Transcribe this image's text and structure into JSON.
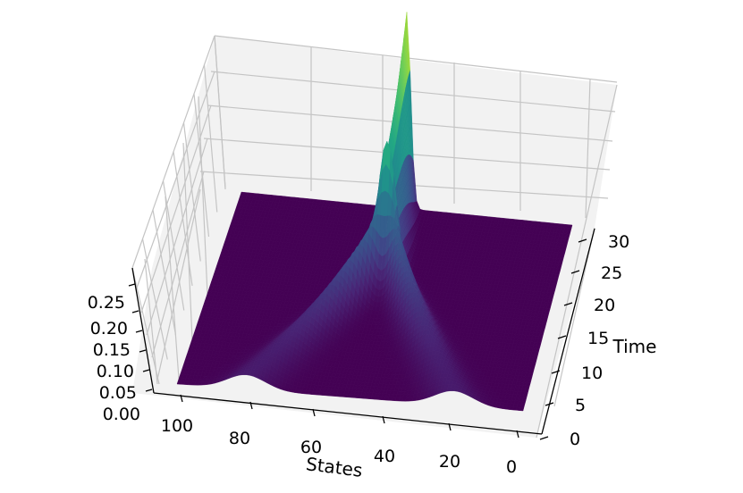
{
  "chart_data": {
    "type": "surface3d",
    "title": "",
    "xlabel": "States",
    "ylabel": "Time",
    "zlabel": "",
    "colormap": "viridis",
    "x_range": [
      0,
      100
    ],
    "y_range": [
      0,
      30
    ],
    "z_range": [
      0,
      0.27
    ],
    "xticks": [
      "100",
      "80",
      "60",
      "40",
      "20",
      "0"
    ],
    "yticks": [
      "0",
      "5",
      "10",
      "15",
      "20",
      "25",
      "30"
    ],
    "zticks": [
      "0.00",
      "0.05",
      "0.10",
      "0.15",
      "0.20",
      "0.25"
    ],
    "view": {
      "elev": 45,
      "azim": "approx. 95 (viewed from high x / low time side)"
    },
    "grid": true,
    "surface": {
      "description_model": "two Gaussian peaks at t=0 that drift toward each other and merge",
      "peaks_at_t0": [
        {
          "state": 80,
          "height": 0.02,
          "width": 5.5
        },
        {
          "state": 20,
          "height": 0.02,
          "width": 5.5
        }
      ],
      "merge_state": 50,
      "merge_time": 20,
      "max_height": 0.27,
      "max_height_time": 30
    }
  }
}
